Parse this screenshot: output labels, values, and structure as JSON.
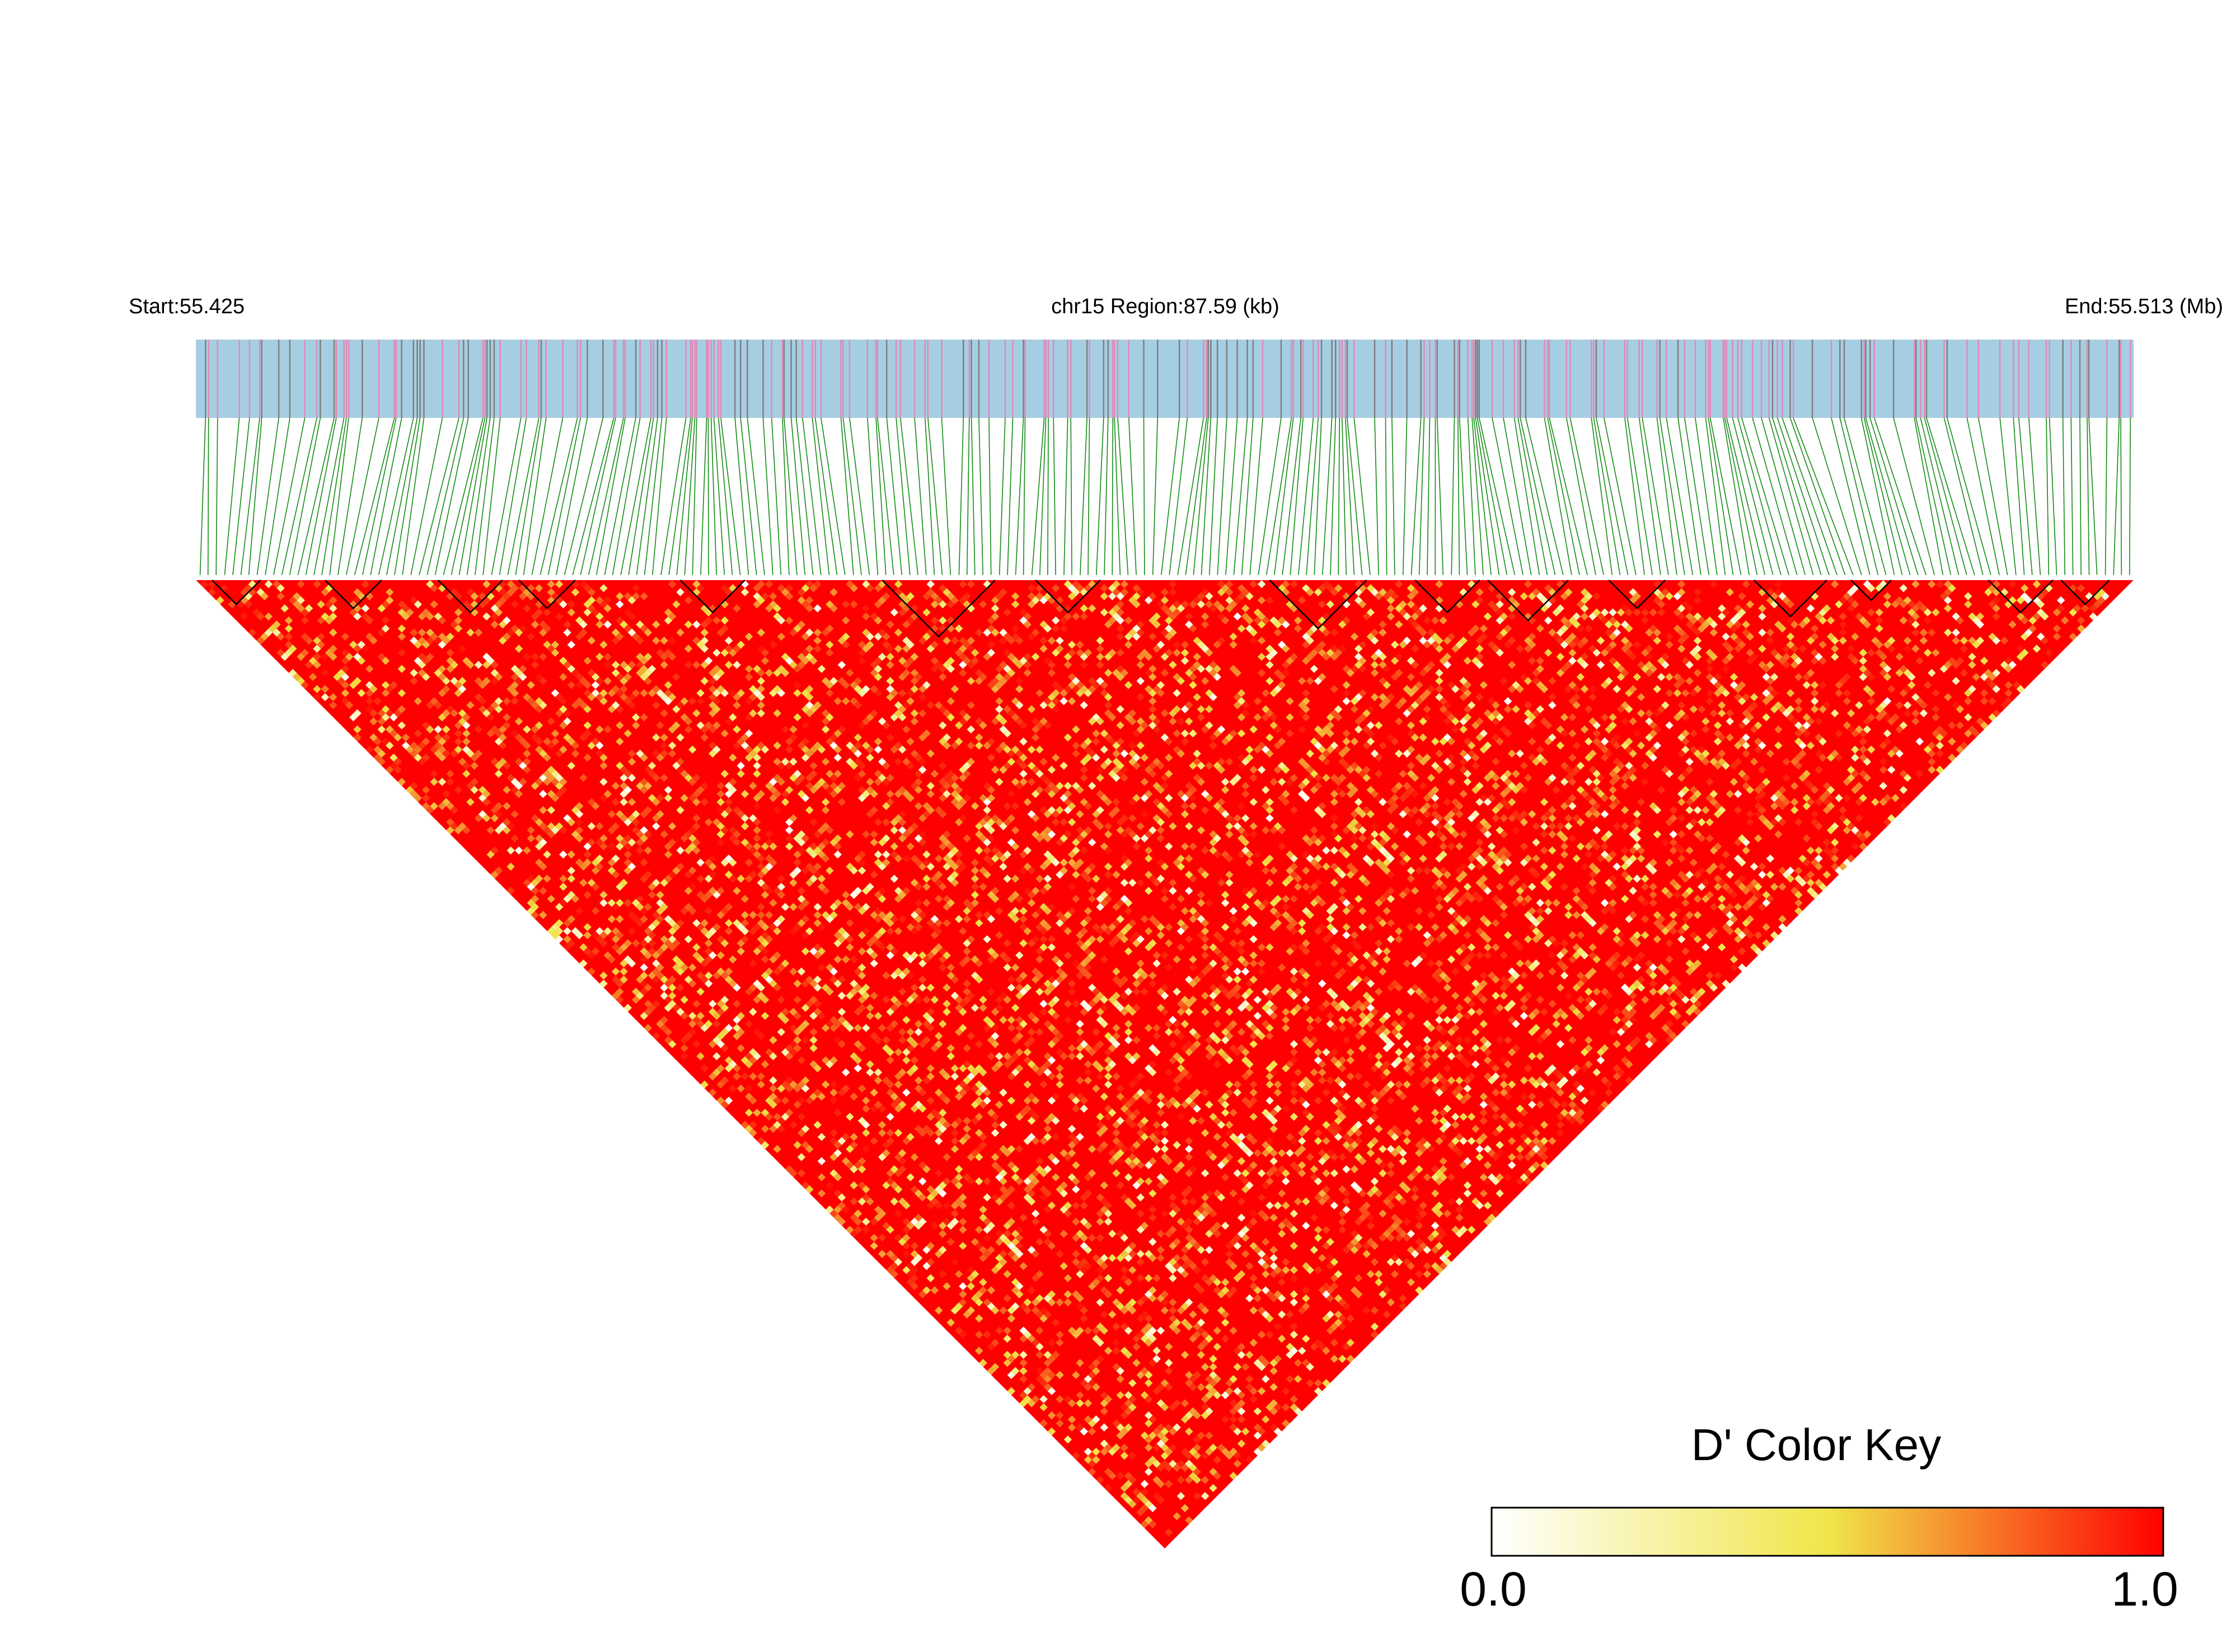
{
  "chart_data": {
    "type": "heatmap",
    "subtype": "linkage-disequilibrium-triangle",
    "header": {
      "start_label": "Start:55.425",
      "region_label": "chr15 Region:87.59 (kb)",
      "end_label": "End:55.513 (Mb)"
    },
    "region": {
      "chromosome": "chr15",
      "start_mb": 55.425,
      "end_mb": 55.513,
      "length_kb": 87.59
    },
    "snp_count_estimate": 240,
    "measure": "D'",
    "color_key": {
      "title": "D' Color Key",
      "min_label": "0.0",
      "max_label": "1.0",
      "min": 0.0,
      "max": 1.0,
      "stops": [
        {
          "value": 0.0,
          "color": "#ffffff"
        },
        {
          "value": 0.5,
          "color": "#f0e64a"
        },
        {
          "value": 1.0,
          "color": "#ff0000"
        }
      ]
    },
    "colors": {
      "track_bg": "#a6cee3",
      "track_tick_pink": "#e08ab8",
      "track_tick_gray": "#7f7f7f",
      "connector": "#138a13",
      "ld_high": "#ff0000",
      "block_outline": "#000000"
    },
    "haplotype_blocks_note": "Black triangular outlines at the top edge mark LD blocks"
  }
}
